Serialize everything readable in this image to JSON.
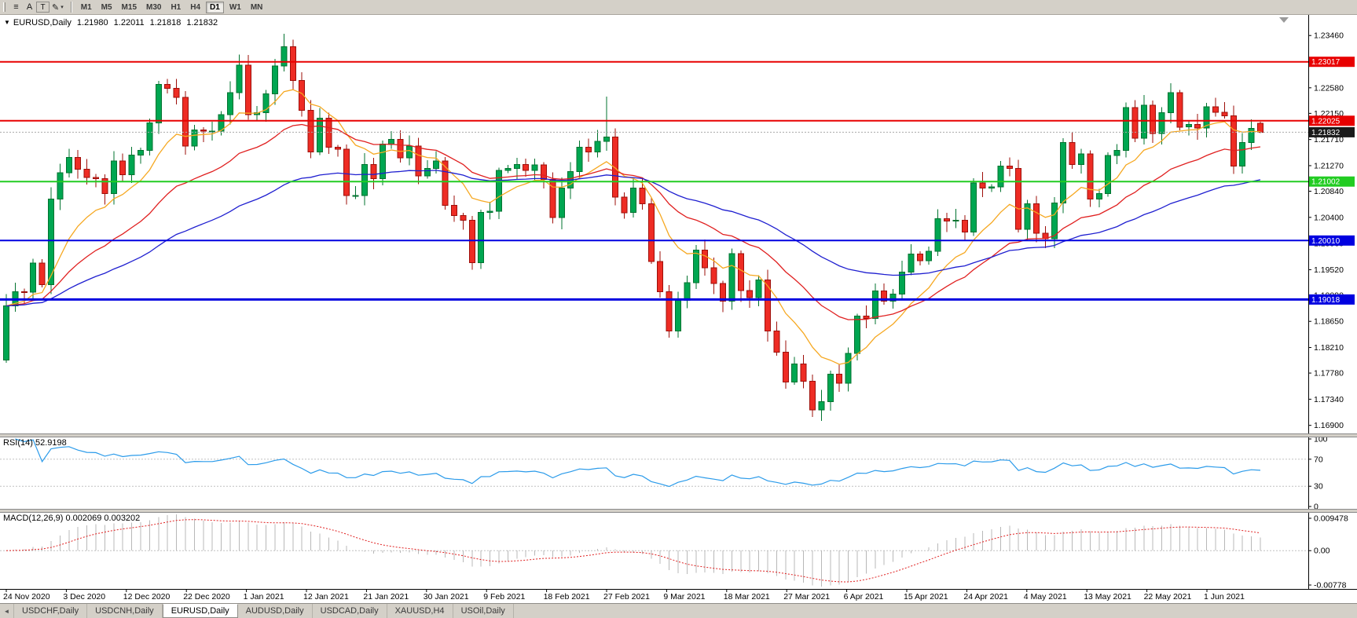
{
  "toolbar": {
    "tools": {
      "menu_glyph": "≡",
      "a_label": "A",
      "t_label": "T",
      "draw_glyph": "✎",
      "caret": "▾"
    },
    "timeframes": [
      "M1",
      "M5",
      "M15",
      "M30",
      "H1",
      "H4",
      "D1",
      "W1",
      "MN"
    ],
    "active_timeframe": "D1"
  },
  "chart": {
    "title_caret": "▼",
    "symbol_period": "EURUSD,Daily",
    "open": "1.21980",
    "high": "1.22011",
    "low": "1.21818",
    "close": "1.21832",
    "price_axis_labels": [
      "1.23460",
      "1.23020",
      "1.22580",
      "1.22150",
      "1.21710",
      "1.21270",
      "1.20840",
      "1.20400",
      "1.19960",
      "1.19520",
      "1.19090",
      "1.18650",
      "1.18210",
      "1.17780",
      "1.17340",
      "1.16900"
    ],
    "price_axis_range": {
      "top": 1.2378,
      "bottom": 1.1679
    },
    "current_price": {
      "value": 1.21832,
      "label": "1.21832",
      "badge_color": "#1a1a1a",
      "line_color": "#aaaaaa"
    },
    "horizontal_lines": [
      {
        "price": 1.23017,
        "label": "1.23017",
        "color": "#e80000",
        "width": 2
      },
      {
        "price": 1.22025,
        "label": "1.22025",
        "color": "#e80000",
        "width": 2
      },
      {
        "price": 1.21002,
        "label": "1.21002",
        "color": "#22cc22",
        "width": 2
      },
      {
        "price": 1.2001,
        "label": "1.20010",
        "color": "#0000e0",
        "width": 2
      },
      {
        "price": 1.19018,
        "label": "1.19018",
        "color": "#0000e0",
        "width": 3
      }
    ],
    "candle_colors": {
      "up_fill": "#00a651",
      "up_stroke": "#00732f",
      "down_fill": "#ee2c24",
      "down_stroke": "#9e0f0a"
    },
    "moving_averages": [
      {
        "period": 10,
        "color": "#f6a821"
      },
      {
        "period": 24,
        "color": "#e02020"
      },
      {
        "period": 52,
        "color": "#1f1fd0"
      }
    ]
  },
  "chart_data": {
    "type": "candlestick",
    "symbol": "EURUSD",
    "timeframe": "Daily",
    "date_labels": [
      "24 Nov 2020",
      "3 Dec 2020",
      "12 Dec 2020",
      "22 Dec 2020",
      "1 Jan 2021",
      "12 Jan 2021",
      "21 Jan 2021",
      "30 Jan 2021",
      "9 Feb 2021",
      "18 Feb 2021",
      "27 Feb 2021",
      "9 Mar 2021",
      "18 Mar 2021",
      "27 Mar 2021",
      "6 Apr 2021",
      "15 Apr 2021",
      "24 Apr 2021",
      "4 May 2021",
      "13 May 2021",
      "22 May 2021",
      "1 Jun 2021"
    ],
    "ylim": [
      1.169,
      1.2346
    ],
    "first_open": 1.18,
    "closes": [
      1.1891,
      1.1915,
      1.1914,
      1.1963,
      1.1927,
      1.2071,
      1.2115,
      1.2141,
      1.2121,
      1.2107,
      1.2105,
      1.208,
      1.2135,
      1.2112,
      1.2145,
      1.2153,
      1.2199,
      1.2264,
      1.2257,
      1.2242,
      1.216,
      1.2187,
      1.2185,
      1.2185,
      1.2213,
      1.225,
      1.2296,
      1.2213,
      1.2216,
      1.2248,
      1.2295,
      1.2327,
      1.227,
      1.222,
      1.215,
      1.2207,
      1.2158,
      1.2155,
      1.2077,
      1.2077,
      1.2129,
      1.2105,
      1.2163,
      1.2171,
      1.214,
      1.216,
      1.211,
      1.2122,
      1.2135,
      1.206,
      1.2043,
      1.2035,
      1.1964,
      1.2048,
      1.205,
      1.2119,
      1.2122,
      1.2129,
      1.2119,
      1.2128,
      1.2104,
      1.204,
      1.2089,
      1.2117,
      1.2158,
      1.215,
      1.2168,
      1.2175,
      1.2074,
      1.2048,
      1.2089,
      1.2063,
      1.1966,
      1.1915,
      1.1849,
      1.19,
      1.193,
      1.1985,
      1.1955,
      1.1929,
      1.1899,
      1.1979,
      1.1917,
      1.1905,
      1.1935,
      1.1849,
      1.1813,
      1.1763,
      1.1793,
      1.1764,
      1.1716,
      1.173,
      1.1776,
      1.1761,
      1.1811,
      1.1874,
      1.187,
      1.1916,
      1.1899,
      1.1911,
      1.1948,
      1.1978,
      1.1967,
      1.1983,
      1.2038,
      1.2034,
      1.2035,
      1.2015,
      1.2098,
      1.2089,
      1.2091,
      1.2126,
      1.2122,
      1.202,
      1.2063,
      1.2013,
      1.2004,
      1.2064,
      1.2166,
      1.2129,
      1.2147,
      1.2071,
      1.208,
      1.2144,
      1.2153,
      1.2225,
      1.2173,
      1.2229,
      1.2181,
      1.2216,
      1.225,
      1.2192,
      1.2196,
      1.219,
      1.2226,
      1.2217,
      1.2211,
      1.2126,
      1.2166,
      1.219,
      1.21832
    ],
    "wick_highs": {
      "31": 1.2349,
      "67": 1.2243,
      "130": 1.2266
    },
    "wick_lows": {
      "52": 1.1952,
      "90": 1.1704
    },
    "current_bar": {
      "o": 1.2198,
      "h": 1.22011,
      "l": 1.21818,
      "c": 1.21832
    }
  },
  "rsi": {
    "label": "RSI(14) 52.9198",
    "axis_labels": [
      "100",
      "70",
      "30",
      "0"
    ],
    "levels": [
      70,
      30
    ],
    "line_color": "#2b9bea"
  },
  "macd": {
    "label": "MACD(12,26,9) 0.002069 0.003202",
    "axis_top": "0.009478",
    "axis_zero": "0.00",
    "axis_bottom": "-0.00778",
    "histogram_color": "#b8b8b8",
    "signal_color": "#e02020"
  },
  "tabs": {
    "scroll_left": "◄",
    "items": [
      "USDCHF,Daily",
      "USDCNH,Daily",
      "EURUSD,Daily",
      "AUDUSD,Daily",
      "USDCAD,Daily",
      "XAUUSD,H4",
      "USOil,Daily"
    ],
    "active": "EURUSD,Daily"
  }
}
